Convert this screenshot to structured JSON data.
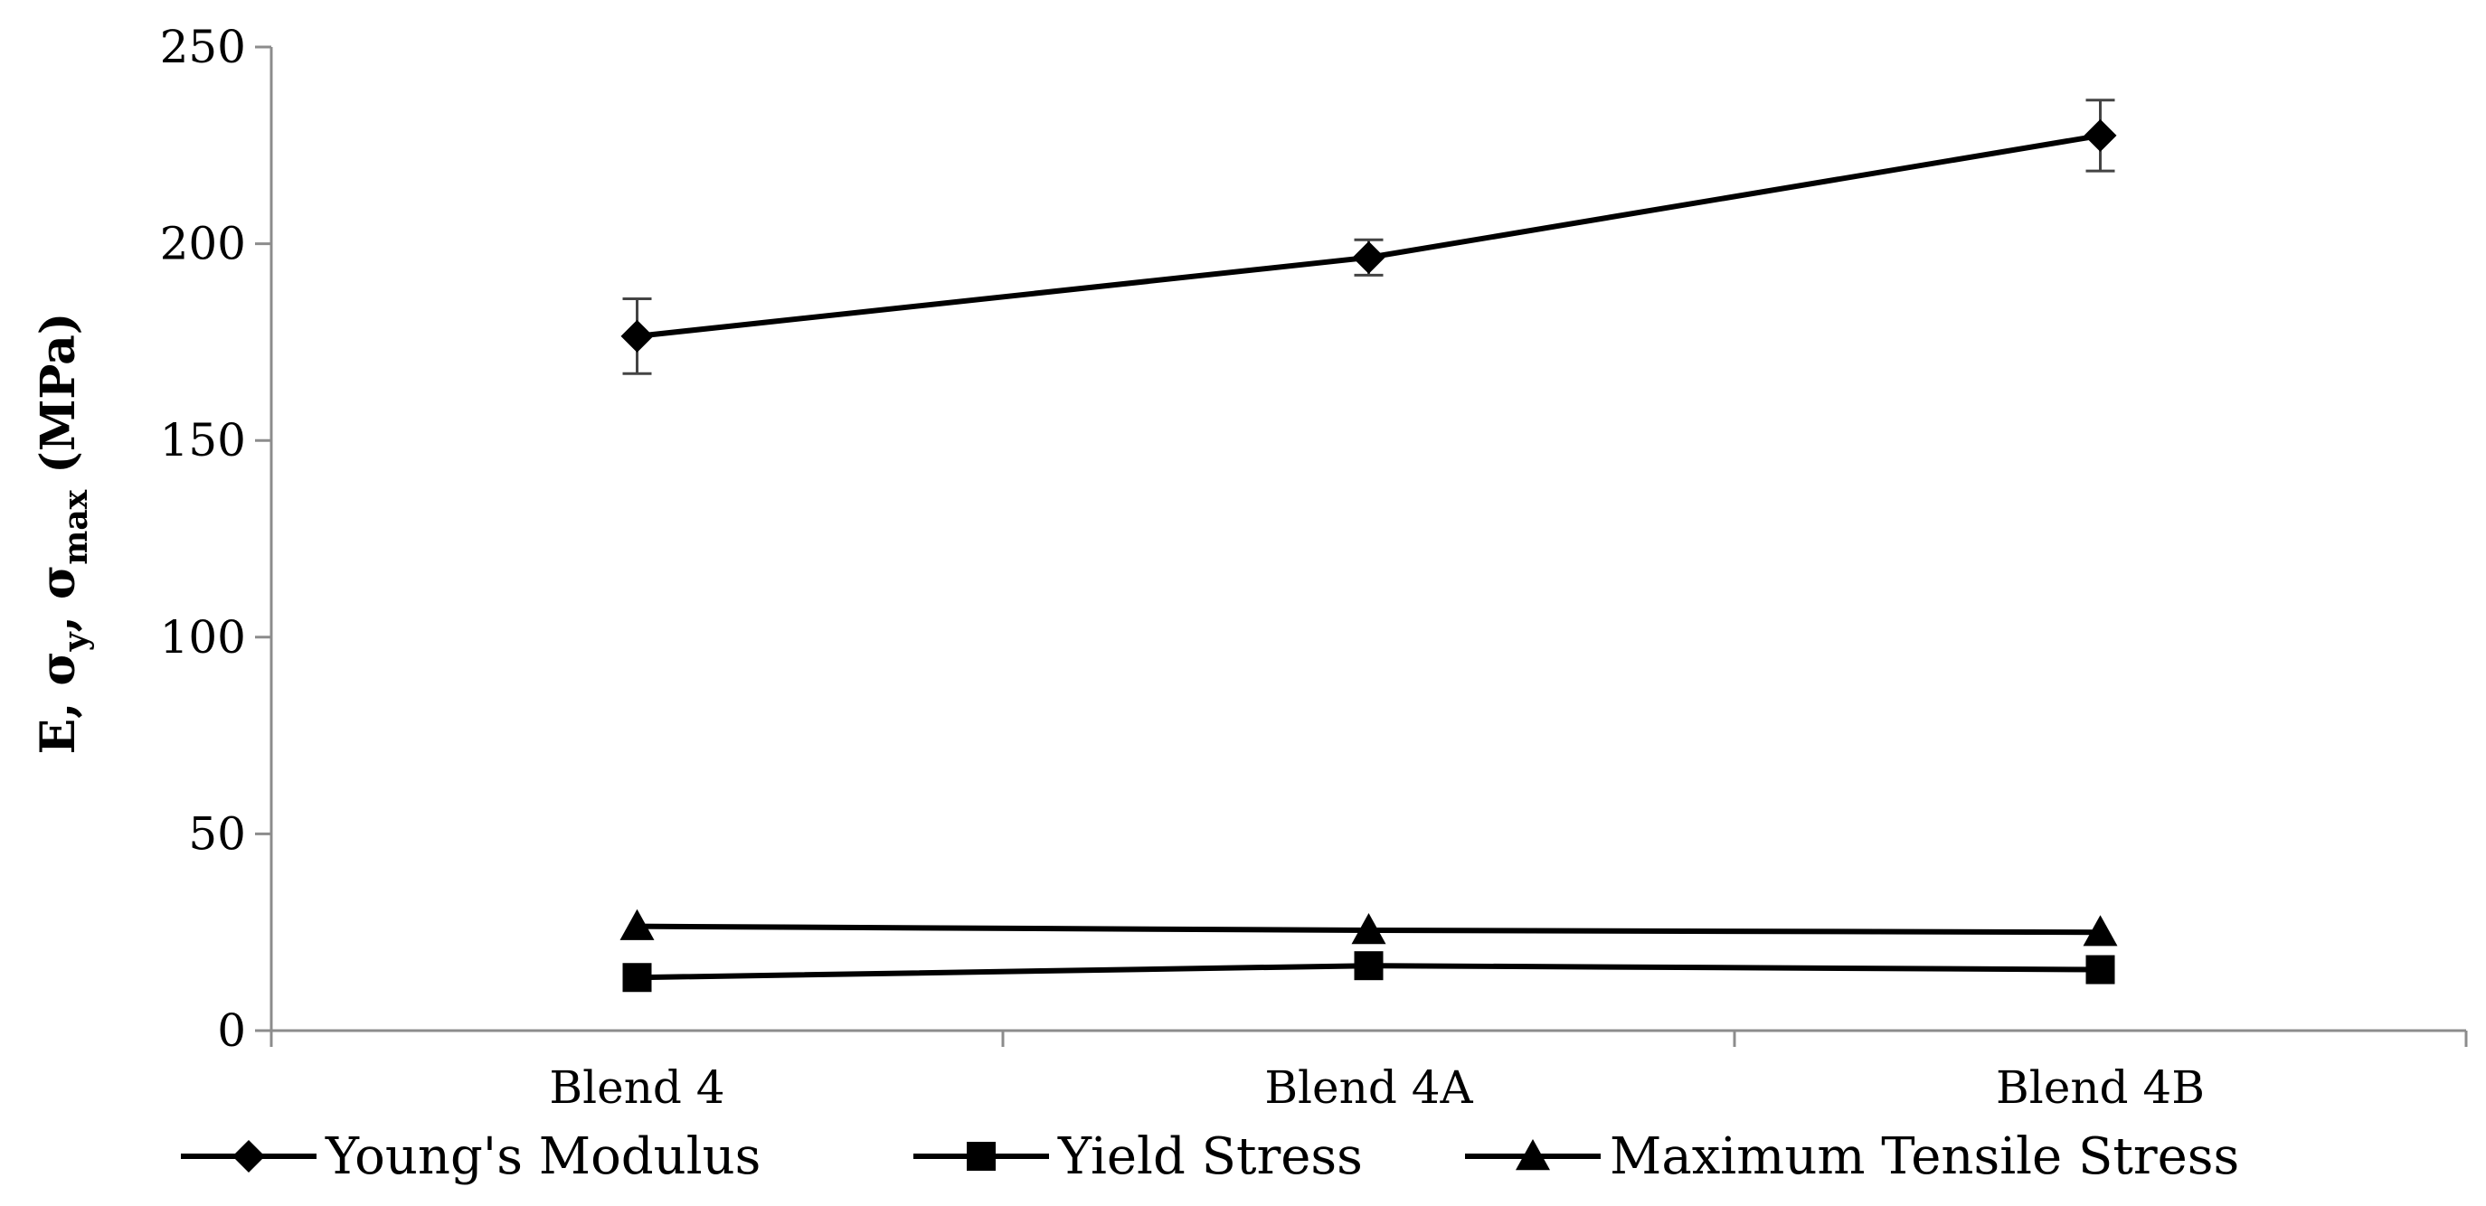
{
  "chart_data": {
    "type": "line",
    "categories": [
      "Blend 4",
      "Blend 4A",
      "Blend 4B"
    ],
    "ylim": [
      0,
      250
    ],
    "yticks": [
      0,
      50,
      100,
      150,
      200,
      250
    ],
    "ylabel": {
      "main": "E, σ",
      "sub_y": "y",
      "sep": ", σ",
      "sub_max": "max",
      "unit": " (MPa)"
    },
    "grid": false,
    "legend_position": "bottom",
    "series": [
      {
        "name": "Young's Modulus",
        "marker": "diamond",
        "values": [
          176.5,
          196.5,
          227.5
        ],
        "errors": [
          9.5,
          4.5,
          9.0
        ]
      },
      {
        "name": "Yield Stress",
        "marker": "square",
        "values": [
          13.5,
          16.5,
          15.5
        ],
        "errors": [
          0,
          0,
          0
        ]
      },
      {
        "name": "Maximum Tensile Stress",
        "marker": "triangle",
        "values": [
          26.5,
          25.5,
          25.0
        ],
        "errors": [
          0,
          0,
          0
        ]
      }
    ],
    "colors": {
      "line": "#000000",
      "axis": "#8c8c8c"
    }
  }
}
